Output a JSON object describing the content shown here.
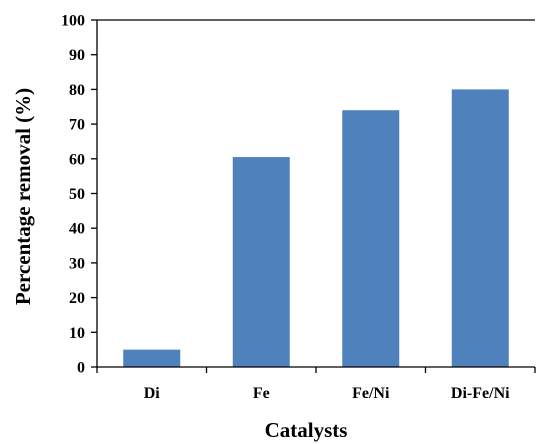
{
  "chart_data": {
    "type": "bar",
    "categories": [
      "Di",
      "Fe",
      "Fe/Ni",
      "Di-Fe/Ni"
    ],
    "values": [
      5,
      60.5,
      74,
      80
    ],
    "xlabel": "Catalysts",
    "ylabel": "Percentage removal (%)",
    "ylim": [
      0,
      100
    ],
    "yticks": [
      0,
      10,
      20,
      30,
      40,
      50,
      60,
      70,
      80,
      90,
      100
    ],
    "grid": false,
    "legend": "none",
    "bar_color": "#4f81bd"
  }
}
